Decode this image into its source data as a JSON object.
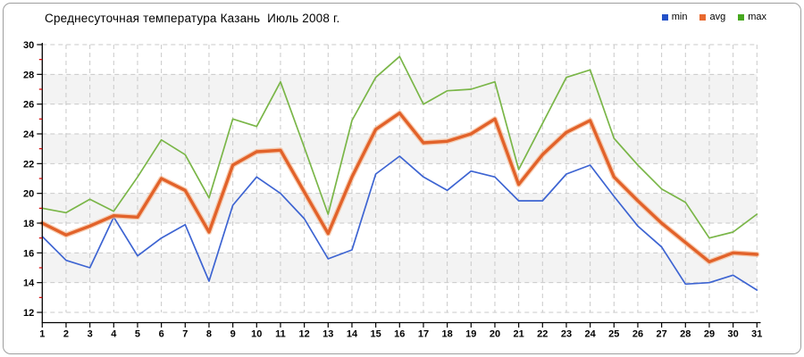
{
  "title": "Среднесуточная температура Казань  Июль 2008 г.",
  "legend": [
    {
      "label": "min",
      "color": "#2351c8"
    },
    {
      "label": "avg",
      "color": "#e8692f"
    },
    {
      "label": "max",
      "color": "#46a81f"
    }
  ],
  "chart_data": {
    "type": "line",
    "title": "Среднесуточная температура Казань  Июль 2008 г.",
    "xlabel": "",
    "ylabel": "",
    "x": [
      1,
      2,
      3,
      4,
      5,
      6,
      7,
      8,
      9,
      10,
      11,
      12,
      13,
      14,
      15,
      16,
      17,
      18,
      19,
      20,
      21,
      22,
      23,
      24,
      25,
      26,
      27,
      28,
      29,
      30,
      31
    ],
    "series": [
      {
        "name": "min",
        "color": "#3d64d2",
        "values": [
          17.1,
          15.5,
          15.0,
          18.4,
          15.8,
          17.0,
          17.9,
          14.1,
          19.2,
          21.1,
          20.0,
          18.3,
          15.6,
          16.2,
          21.3,
          22.5,
          21.1,
          20.2,
          21.5,
          21.1,
          19.5,
          19.5,
          21.3,
          21.9,
          19.8,
          17.8,
          16.4,
          13.9,
          14.0,
          14.5,
          13.5
        ]
      },
      {
        "name": "avg",
        "color": "#e2622a",
        "halo": "#f5b68c",
        "values": [
          18.0,
          17.2,
          17.8,
          18.5,
          18.4,
          21.0,
          20.2,
          17.4,
          21.9,
          22.8,
          22.9,
          20.1,
          17.3,
          21.1,
          24.3,
          25.4,
          23.4,
          23.5,
          24.0,
          25.0,
          20.6,
          22.6,
          24.1,
          24.9,
          21.1,
          19.5,
          18.0,
          16.7,
          15.4,
          16.0,
          15.9
        ]
      },
      {
        "name": "max",
        "color": "#7ab648",
        "values": [
          19.0,
          18.7,
          19.6,
          18.8,
          21.1,
          23.6,
          22.6,
          19.7,
          25.0,
          24.5,
          27.5,
          23.1,
          18.6,
          24.9,
          27.8,
          29.2,
          26.0,
          26.9,
          27.0,
          27.5,
          21.6,
          24.7,
          27.8,
          28.3,
          23.7,
          21.9,
          20.3,
          19.4,
          17.0,
          17.4,
          18.6
        ]
      }
    ],
    "ylim": [
      12,
      30
    ],
    "y_tick_step": 2,
    "y_ticks": [
      12,
      14,
      16,
      18,
      20,
      22,
      24,
      26,
      28,
      30
    ],
    "y_minor_ticks": [
      13,
      15,
      17,
      19,
      21,
      23,
      25,
      27,
      29
    ],
    "y_minor_tick_color": "#d40000",
    "grid": "dashed",
    "grid_color": "#c9c9c9",
    "axis_color": "#000000",
    "bands": [
      [
        14,
        16
      ],
      [
        18,
        20
      ],
      [
        22,
        24
      ],
      [
        26,
        28
      ]
    ],
    "band_fill": "#f3f3f3",
    "legend_position": "top-right"
  }
}
